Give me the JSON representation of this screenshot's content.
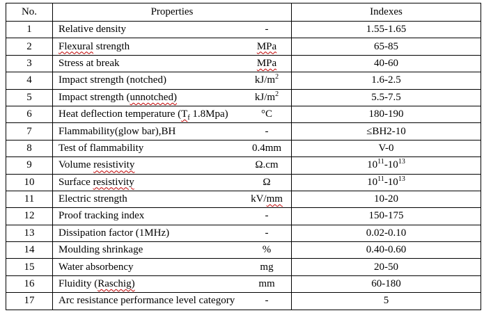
{
  "table": {
    "headers": {
      "no": "No.",
      "properties": "Properties",
      "indexes": "Indexes"
    },
    "style": {
      "border_color": "#000000",
      "text_color": "#000000",
      "background": "#ffffff",
      "spellcheck_underline_color": "#c00000"
    },
    "rows": [
      {
        "no": "1",
        "property": [
          {
            "t": "Relative density"
          }
        ],
        "unit": [
          {
            "t": "-"
          }
        ],
        "index": [
          {
            "t": "1.55-1.65"
          }
        ]
      },
      {
        "no": "2",
        "property": [
          {
            "t": "Flexural",
            "wavy": true
          },
          {
            "t": " strength"
          }
        ],
        "unit": [
          {
            "t": "MPa",
            "wavy": true
          }
        ],
        "index": [
          {
            "t": "65-85"
          }
        ]
      },
      {
        "no": "3",
        "property": [
          {
            "t": "Stress at break"
          }
        ],
        "unit": [
          {
            "t": "MPa",
            "wavy": true
          }
        ],
        "index": [
          {
            "t": "40-60"
          }
        ]
      },
      {
        "no": "4",
        "property": [
          {
            "t": "Impact strength (notched)"
          }
        ],
        "unit": [
          {
            "t": "kJ/m"
          },
          {
            "t": "2",
            "sup": true
          }
        ],
        "index": [
          {
            "t": "1.6-2.5"
          }
        ]
      },
      {
        "no": "5",
        "property": [
          {
            "t": "Impact strength ("
          },
          {
            "t": "unnotched)",
            "wavy": true
          }
        ],
        "unit": [
          {
            "t": "kJ/m"
          },
          {
            "t": "2",
            "sup": true
          }
        ],
        "index": [
          {
            "t": "5.5-7.5"
          }
        ]
      },
      {
        "no": "6",
        "property": [
          {
            "t": "Heat deflection temperature ("
          },
          {
            "t": "T",
            "wavy": true
          },
          {
            "t": "f",
            "sub": true,
            "wavy": true
          },
          {
            "t": " 1.8Mpa)"
          }
        ],
        "unit": [
          {
            "t": "°C"
          }
        ],
        "index": [
          {
            "t": "180-190"
          }
        ]
      },
      {
        "no": "7",
        "property": [
          {
            "t": "Flammability(glow bar),BH"
          }
        ],
        "unit": [
          {
            "t": "-"
          }
        ],
        "index": [
          {
            "t": "≤BH2-10"
          }
        ]
      },
      {
        "no": "8",
        "property": [
          {
            "t": "Test of flammability"
          }
        ],
        "unit": [
          {
            "t": "0.4mm"
          }
        ],
        "index": [
          {
            "t": "V-0"
          }
        ]
      },
      {
        "no": "9",
        "property": [
          {
            "t": "Volume "
          },
          {
            "t": "resistivity",
            "wavy": true
          }
        ],
        "unit": [
          {
            "t": "Ω.cm"
          }
        ],
        "index": [
          {
            "t": "10"
          },
          {
            "t": "11",
            "sup": true
          },
          {
            "t": "-10"
          },
          {
            "t": "13",
            "sup": true
          }
        ]
      },
      {
        "no": "10",
        "property": [
          {
            "t": "Surface "
          },
          {
            "t": "resistivity",
            "wavy": true
          }
        ],
        "unit": [
          {
            "t": "Ω"
          }
        ],
        "index": [
          {
            "t": "10"
          },
          {
            "t": "11",
            "sup": true
          },
          {
            "t": "-10"
          },
          {
            "t": "13",
            "sup": true
          }
        ]
      },
      {
        "no": "11",
        "property": [
          {
            "t": "Electric strength"
          }
        ],
        "unit": [
          {
            "t": "kV/"
          },
          {
            "t": "mm",
            "wavy": true
          }
        ],
        "index": [
          {
            "t": "10-20"
          }
        ]
      },
      {
        "no": "12",
        "property": [
          {
            "t": "Proof tracking index"
          }
        ],
        "unit": [
          {
            "t": "-"
          }
        ],
        "index": [
          {
            "t": "150-175"
          }
        ]
      },
      {
        "no": "13",
        "property": [
          {
            "t": "Dissipation factor (1MHz)"
          }
        ],
        "unit": [
          {
            "t": "-"
          }
        ],
        "index": [
          {
            "t": "0.02-0.10"
          }
        ]
      },
      {
        "no": "14",
        "property": [
          {
            "t": "Moulding shrinkage"
          }
        ],
        "unit": [
          {
            "t": "%"
          }
        ],
        "index": [
          {
            "t": "0.40-0.60"
          }
        ]
      },
      {
        "no": "15",
        "property": [
          {
            "t": "Water absorbency"
          }
        ],
        "unit": [
          {
            "t": "mg"
          }
        ],
        "index": [
          {
            "t": "20-50"
          }
        ]
      },
      {
        "no": "16",
        "property": [
          {
            "t": "Fluidity ("
          },
          {
            "t": "Raschig)",
            "wavy": true
          }
        ],
        "unit": [
          {
            "t": "mm"
          }
        ],
        "index": [
          {
            "t": "60-180"
          }
        ]
      },
      {
        "no": "17",
        "property": [
          {
            "t": "Arc resistance performance level category"
          }
        ],
        "unit": [
          {
            "t": "-"
          }
        ],
        "index": [
          {
            "t": "5"
          }
        ]
      }
    ]
  }
}
